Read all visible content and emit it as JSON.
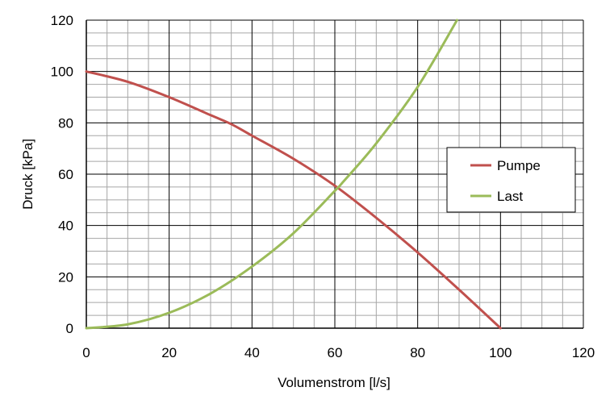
{
  "chart_data": {
    "type": "line",
    "xlabel": "Volumenstrom [l/s]",
    "ylabel": "Druck [kPa]",
    "xlim": [
      0,
      120
    ],
    "ylim": [
      0,
      120
    ],
    "x_ticks": [
      "0",
      "20",
      "40",
      "60",
      "80",
      "100",
      "120"
    ],
    "y_ticks": [
      "0",
      "20",
      "40",
      "60",
      "80",
      "100",
      "120"
    ],
    "grid": "on (major every 20, minor every 5)",
    "legend_position": "right",
    "series": [
      {
        "name": "Pumpe",
        "color": "#c0504d",
        "x": [
          0,
          10,
          20,
          30,
          35,
          40,
          50,
          60,
          70,
          80,
          90,
          100
        ],
        "y": [
          100,
          96,
          90,
          83,
          79.5,
          75,
          66,
          55.5,
          43,
          29.5,
          15,
          0
        ]
      },
      {
        "name": "Last",
        "color": "#9bbb59",
        "x": [
          0,
          10,
          20,
          30,
          40,
          50,
          60,
          62,
          70,
          80,
          89.5
        ],
        "y": [
          0,
          1.5,
          6,
          13.5,
          24,
          37,
          53.5,
          57,
          72,
          94,
          120
        ]
      }
    ]
  }
}
